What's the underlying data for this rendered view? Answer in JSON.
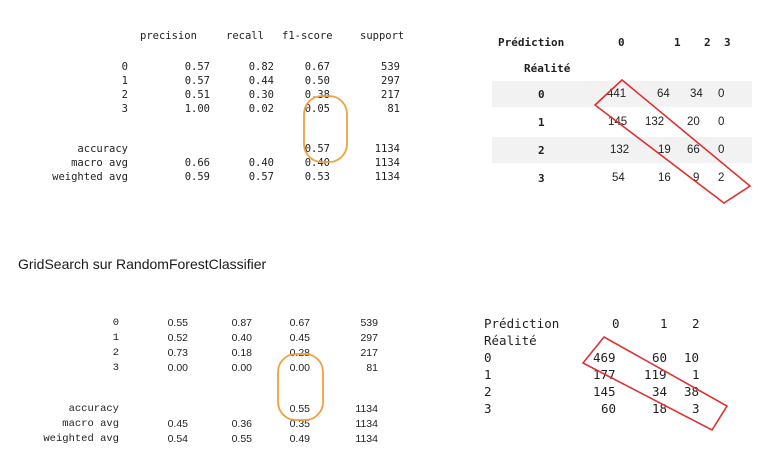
{
  "report1": {
    "headers": [
      "precision",
      "recall",
      "f1-score",
      "support"
    ],
    "rows": [
      {
        "label": "0",
        "values": [
          "0.57",
          "0.82",
          "0.67",
          "539"
        ]
      },
      {
        "label": "1",
        "values": [
          "0.57",
          "0.44",
          "0.50",
          "297"
        ]
      },
      {
        "label": "2",
        "values": [
          "0.51",
          "0.30",
          "0.38",
          "217"
        ]
      },
      {
        "label": "3",
        "values": [
          "1.00",
          "0.02",
          "0.05",
          "81"
        ]
      }
    ],
    "summary": [
      {
        "label": "accuracy",
        "values": [
          "",
          "",
          "0.57",
          "1134"
        ]
      },
      {
        "label": "macro avg",
        "values": [
          "0.66",
          "0.40",
          "0.40",
          "1134"
        ]
      },
      {
        "label": "weighted avg",
        "values": [
          "0.59",
          "0.57",
          "0.53",
          "1134"
        ]
      }
    ]
  },
  "cm1": {
    "prediction_label": "Prédiction",
    "reality_label": "Réalité",
    "columns": [
      "0",
      "1",
      "2",
      "3"
    ],
    "rows": [
      {
        "label": "0",
        "values": [
          "441",
          "64",
          "34",
          "0"
        ]
      },
      {
        "label": "1",
        "values": [
          "145",
          "132",
          "20",
          "0"
        ]
      },
      {
        "label": "2",
        "values": [
          "132",
          "19",
          "66",
          "0"
        ]
      },
      {
        "label": "3",
        "values": [
          "54",
          "16",
          "9",
          "2"
        ]
      }
    ]
  },
  "section_title": "GridSearch sur RandomForestClassifier",
  "report2": {
    "rows": [
      {
        "label": "0",
        "values": [
          "0.55",
          "0.87",
          "0.67",
          "539"
        ]
      },
      {
        "label": "1",
        "values": [
          "0.52",
          "0.40",
          "0.45",
          "297"
        ]
      },
      {
        "label": "2",
        "values": [
          "0.73",
          "0.18",
          "0.28",
          "217"
        ]
      },
      {
        "label": "3",
        "values": [
          "0.00",
          "0.00",
          "0.00",
          "81"
        ]
      }
    ],
    "summary": [
      {
        "label": "accuracy",
        "values": [
          "",
          "",
          "0.55",
          "1134"
        ]
      },
      {
        "label": "macro avg",
        "values": [
          "0.45",
          "0.36",
          "0.35",
          "1134"
        ]
      },
      {
        "label": "weighted avg",
        "values": [
          "0.54",
          "0.55",
          "0.49",
          "1134"
        ]
      }
    ]
  },
  "cm2": {
    "prediction_label": "Prédiction",
    "reality_label": "Réalité",
    "columns": [
      "0",
      "1",
      "2"
    ],
    "rows": [
      {
        "label": "0",
        "values": [
          "469",
          "60",
          "10"
        ]
      },
      {
        "label": "1",
        "values": [
          "177",
          "119",
          "1"
        ]
      },
      {
        "label": "2",
        "values": [
          "145",
          "34",
          "38"
        ]
      },
      {
        "label": "3",
        "values": [
          "60",
          "18",
          "3"
        ]
      }
    ]
  },
  "annotation_colors": {
    "circle": "#f0a040",
    "diagonal": "#e03030"
  }
}
